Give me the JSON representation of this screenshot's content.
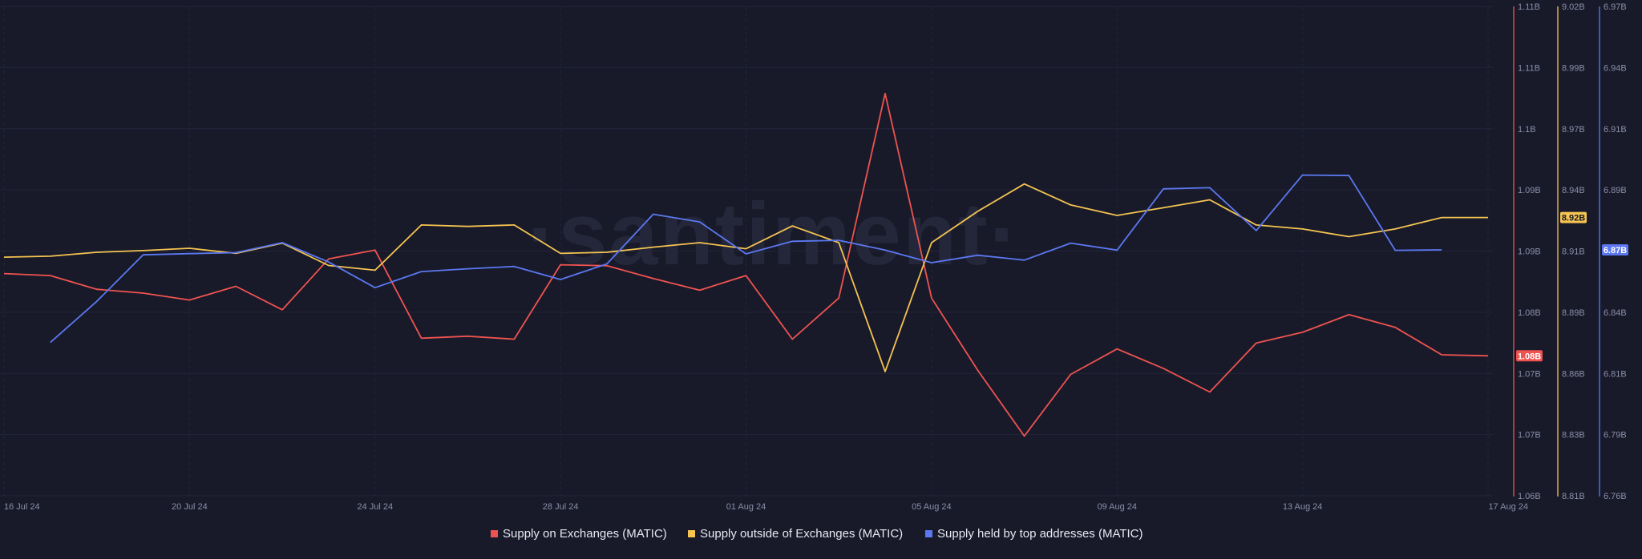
{
  "chart_data": {
    "type": "line",
    "watermark": "·santiment·",
    "x_labels": [
      "16 Jul 24",
      "20 Jul 24",
      "24 Jul 24",
      "28 Jul 24",
      "01 Aug 24",
      "05 Aug 24",
      "09 Aug 24",
      "13 Aug 24",
      "17 Aug 24"
    ],
    "x_range_days": [
      0,
      32
    ],
    "axes": [
      {
        "id": "exchanges",
        "color": "#ef5350",
        "ticks": [
          "1.11B",
          "1.11B",
          "1.1B",
          "1.09B",
          "1.09B",
          "1.08B",
          "1.07B",
          "1.07B",
          "1.06B"
        ],
        "range": [
          1.06,
          1.11
        ],
        "badge": "1.08B"
      },
      {
        "id": "outside",
        "color": "#f5c451",
        "ticks": [
          "9.02B",
          "8.99B",
          "8.97B",
          "8.94B",
          "8.91B",
          "8.89B",
          "8.86B",
          "8.83B",
          "8.81B"
        ],
        "range": [
          8.81,
          9.02
        ],
        "badge": "8.92B"
      },
      {
        "id": "top",
        "color": "#5b78f0",
        "ticks": [
          "6.97B",
          "6.94B",
          "6.91B",
          "6.89B",
          "6.86B",
          "6.84B",
          "6.81B",
          "6.79B",
          "6.76B"
        ],
        "range": [
          6.76,
          6.97
        ],
        "badge": "6.87B"
      }
    ],
    "series": [
      {
        "name": "Supply on Exchanges (MATIC)",
        "axis": "exchanges",
        "color": "#ef5350",
        "x": [
          0,
          1,
          2,
          3,
          4,
          5,
          6,
          7,
          8,
          9,
          10,
          11,
          12,
          13,
          14,
          15,
          16,
          17,
          18,
          19,
          20,
          21,
          22,
          23,
          24,
          25,
          26,
          27,
          28,
          29,
          30,
          31,
          32
        ],
        "values": [
          1.0827,
          1.0825,
          1.0811,
          1.0807,
          1.08,
          1.0814,
          1.079,
          1.0842,
          1.0851,
          1.0761,
          1.0763,
          1.076,
          1.0836,
          1.0835,
          1.0822,
          1.081,
          1.0825,
          1.076,
          1.0802,
          1.1011,
          1.0802,
          1.0728,
          1.0661,
          1.0724,
          1.075,
          1.073,
          1.0706,
          1.0756,
          1.0767,
          1.0785,
          1.0772,
          1.0744,
          1.0743
        ]
      },
      {
        "name": "Supply outside of Exchanges (MATIC)",
        "axis": "outside",
        "color": "#f5c451",
        "x": [
          0,
          1,
          2,
          3,
          4,
          5,
          6,
          7,
          8,
          9,
          10,
          11,
          12,
          13,
          14,
          15,
          16,
          17,
          18,
          19,
          20,
          21,
          22,
          23,
          24,
          25,
          26,
          27,
          28,
          29,
          30,
          31,
          32
        ],
        "values": [
          8.9124,
          8.9128,
          8.9145,
          8.9152,
          8.9162,
          8.914,
          8.9184,
          8.9088,
          8.9068,
          8.9262,
          8.9256,
          8.9262,
          8.914,
          8.9145,
          8.9167,
          8.9186,
          8.916,
          8.9258,
          8.9186,
          8.8633,
          8.9186,
          8.9321,
          8.9438,
          8.9348,
          8.9303,
          8.9336,
          8.937,
          8.9262,
          8.9245,
          8.9212,
          8.9245,
          8.9294,
          8.9294
        ]
      },
      {
        "name": "Supply held by top addresses (MATIC)",
        "axis": "top",
        "color": "#5b78f0",
        "x": [
          1,
          2,
          3,
          4,
          5,
          6,
          7,
          8,
          9,
          10,
          11,
          12,
          13,
          14,
          15,
          16,
          17,
          18,
          19,
          20,
          21,
          22,
          23,
          24,
          25,
          26,
          27,
          28,
          29,
          30,
          31
        ],
        "values": [
          6.8258,
          6.8434,
          6.8634,
          6.8639,
          6.8643,
          6.8686,
          6.8603,
          6.8493,
          6.8562,
          6.8574,
          6.8584,
          6.8528,
          6.8595,
          6.8808,
          6.8775,
          6.8638,
          6.8692,
          6.8696,
          6.8654,
          6.86,
          6.8632,
          6.8611,
          6.8684,
          6.8654,
          6.8917,
          6.8922,
          6.8738,
          6.8976,
          6.8974,
          6.8653,
          6.8655
        ]
      }
    ]
  }
}
